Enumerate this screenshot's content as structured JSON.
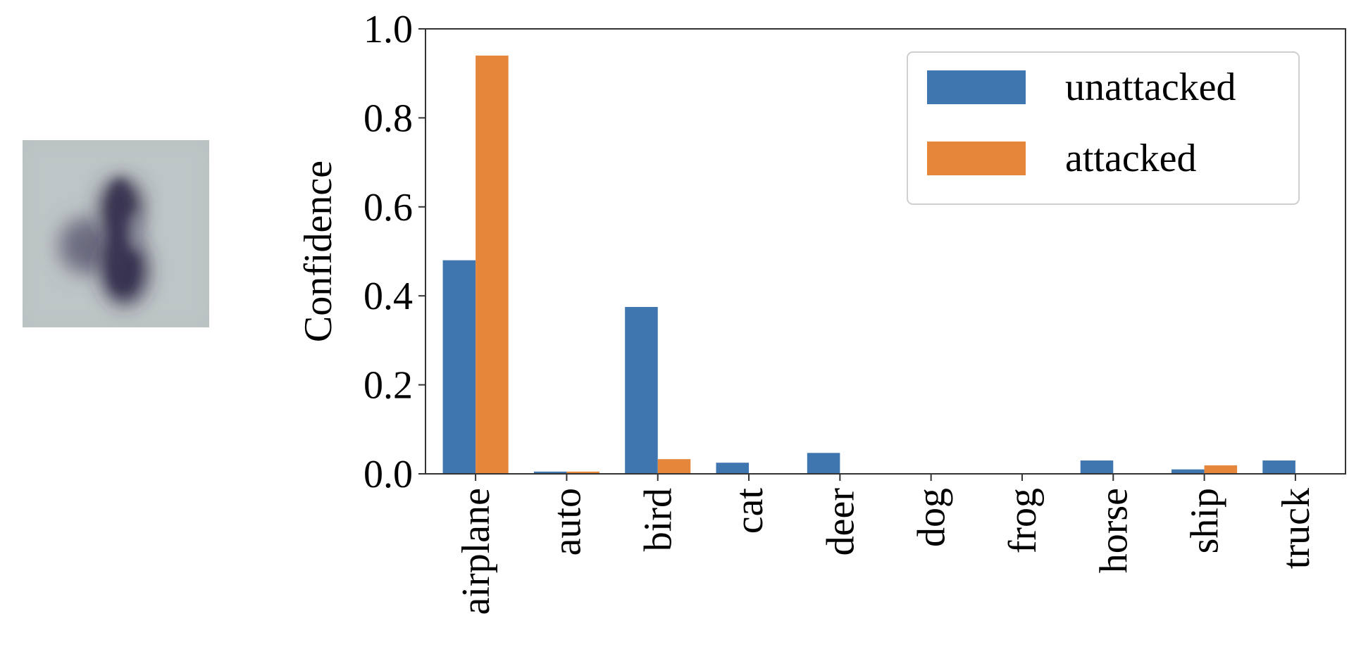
{
  "chart_data": {
    "type": "bar",
    "categories": [
      "airplane",
      "auto",
      "bird",
      "cat",
      "deer",
      "dog",
      "frog",
      "horse",
      "ship",
      "truck"
    ],
    "series": [
      {
        "name": "unattacked",
        "color": "#3f76af",
        "values": [
          0.48,
          0.005,
          0.375,
          0.025,
          0.047,
          0.0,
          0.0,
          0.03,
          0.01,
          0.03
        ]
      },
      {
        "name": "attacked",
        "color": "#e6863b",
        "values": [
          0.94,
          0.005,
          0.033,
          0.0,
          0.0,
          0.0,
          0.0,
          0.0,
          0.019,
          0.0
        ]
      }
    ],
    "xlabel": "",
    "ylabel": "Confidence",
    "ylim": [
      0,
      1.0
    ],
    "yticks": [
      "0.0",
      "0.2",
      "0.4",
      "0.6",
      "0.8",
      "1.0"
    ],
    "grid": false,
    "legend_position": "top-right"
  },
  "image_panel": {
    "description_icon": "blurred-image-thumbnail"
  }
}
